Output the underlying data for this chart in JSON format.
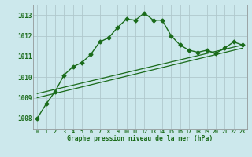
{
  "title": "Graphe pression niveau de la mer (hPa)",
  "background_color": "#cce8ec",
  "grid_color": "#b0c8cc",
  "line_color": "#1a6b1a",
  "x_ticks": [
    0,
    1,
    2,
    3,
    4,
    5,
    6,
    7,
    8,
    9,
    10,
    11,
    12,
    13,
    14,
    15,
    16,
    17,
    18,
    19,
    20,
    21,
    22,
    23
  ],
  "ylim": [
    1007.5,
    1013.5
  ],
  "yticks": [
    1008,
    1009,
    1010,
    1011,
    1012,
    1013
  ],
  "series1_x": [
    0,
    1,
    2,
    3,
    4,
    5,
    6,
    7,
    8,
    9,
    10,
    11,
    12,
    13,
    14,
    15,
    16,
    17,
    18,
    19,
    20,
    21,
    22,
    23
  ],
  "series1_y": [
    1008.0,
    1008.7,
    1009.3,
    1010.1,
    1010.5,
    1010.7,
    1011.1,
    1011.7,
    1011.9,
    1012.4,
    1012.8,
    1012.75,
    1013.1,
    1012.75,
    1012.75,
    1012.0,
    1011.55,
    1011.3,
    1011.2,
    1011.3,
    1011.15,
    1011.4,
    1011.7,
    1011.55
  ],
  "series2_x": [
    0,
    23
  ],
  "series2_y": [
    1009.2,
    1011.55
  ],
  "series3_x": [
    0,
    23
  ],
  "series3_y": [
    1009.0,
    1011.4
  ],
  "xlabel_fontsize": 5.8,
  "ytick_fontsize": 5.5,
  "xtick_fontsize": 4.8
}
